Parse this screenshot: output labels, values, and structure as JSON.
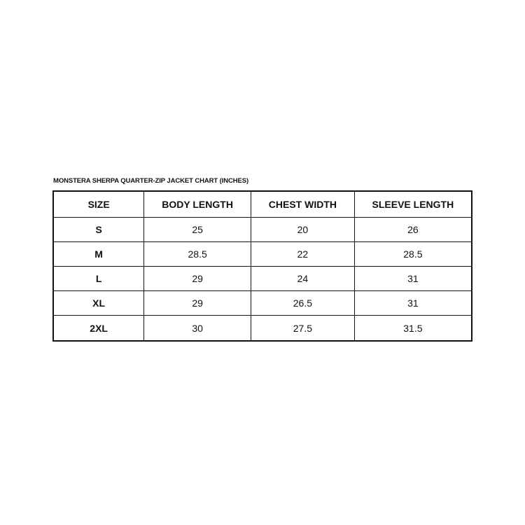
{
  "title": "MONSTERA SHERPA QUARTER-ZIP JACKET CHART (INCHES)",
  "table": {
    "headers": [
      "SIZE",
      "BODY LENGTH",
      "CHEST WIDTH",
      "SLEEVE LENGTH"
    ],
    "rows": [
      [
        "S",
        "25",
        "20",
        "26"
      ],
      [
        "M",
        "28.5",
        "22",
        "28.5"
      ],
      [
        "L",
        "29",
        "24",
        "31"
      ],
      [
        "XL",
        "29",
        "26.5",
        "31"
      ],
      [
        "2XL",
        "30",
        "27.5",
        "31.5"
      ]
    ]
  }
}
